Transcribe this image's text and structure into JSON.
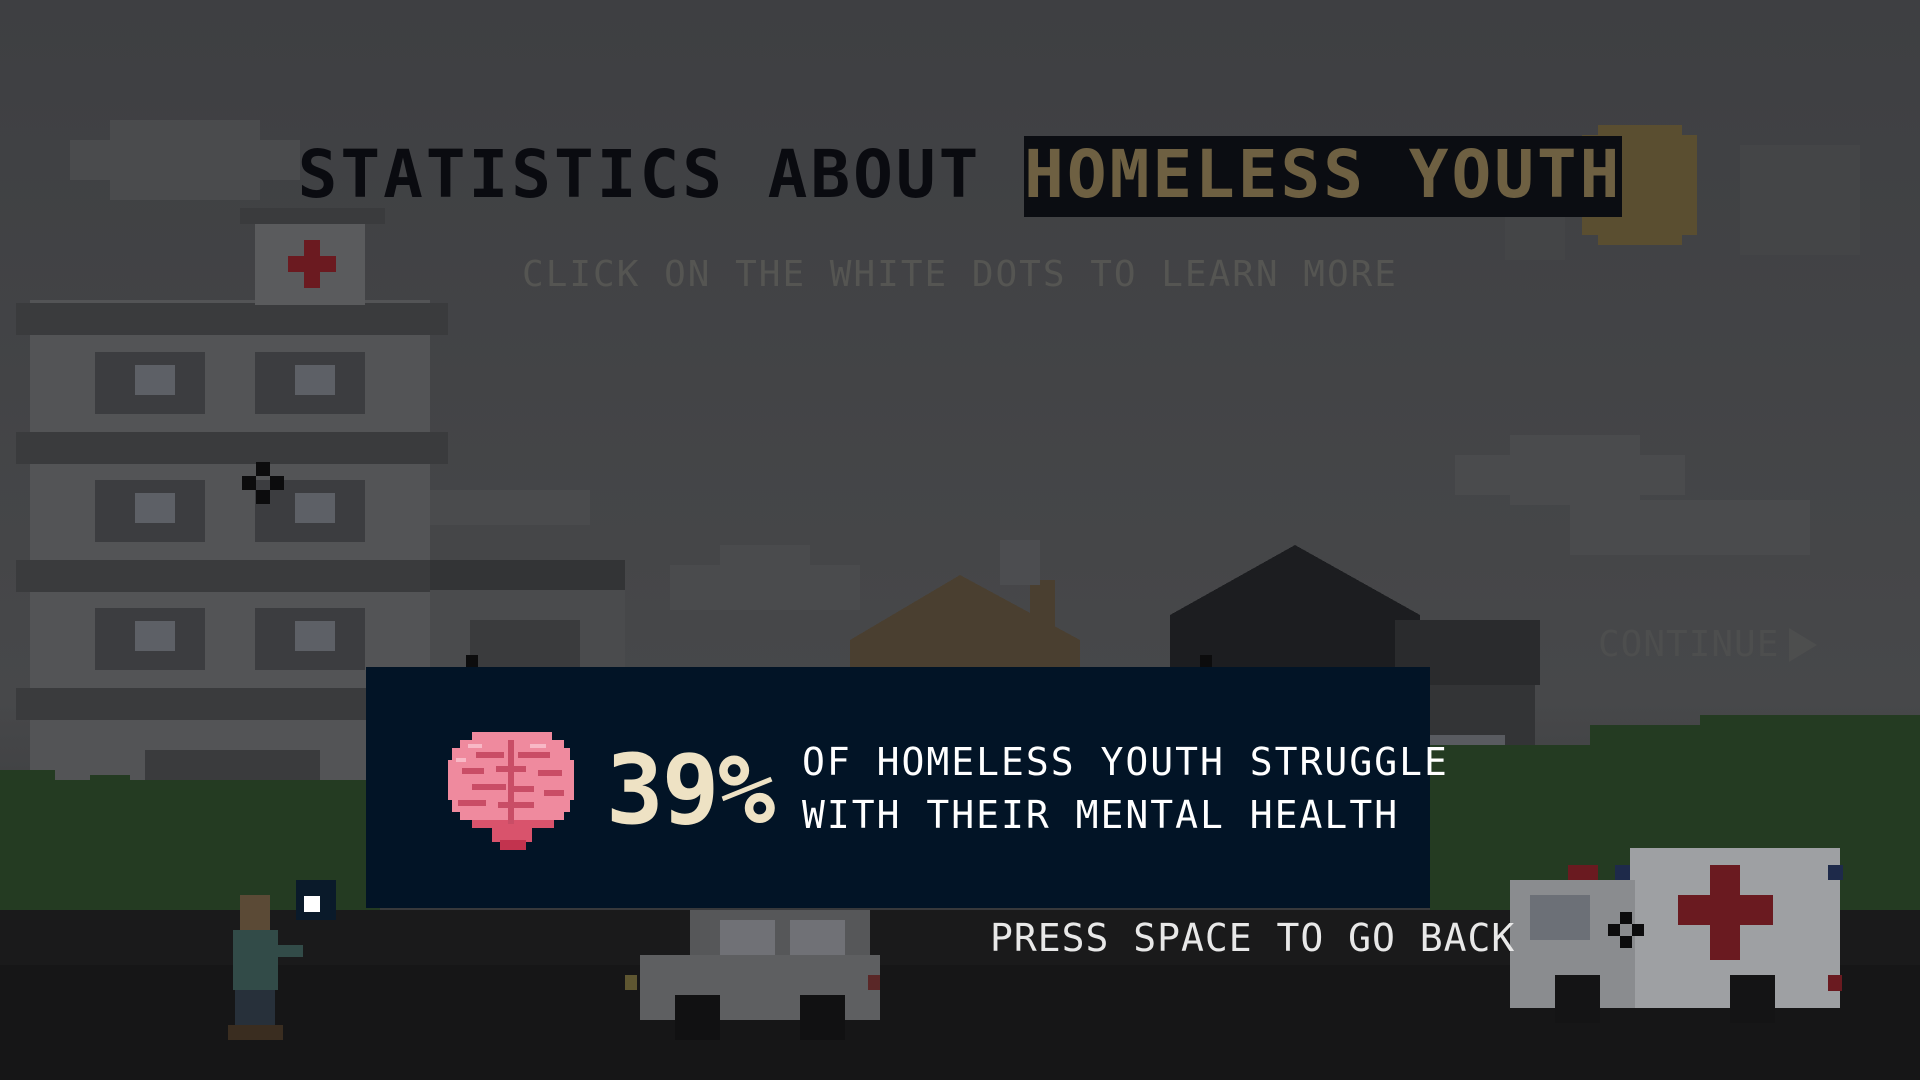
{
  "header": {
    "title_prefix": "STATISTICS ABOUT",
    "title_highlight": "HOMELESS YOUTH",
    "subtitle": "CLICK ON THE WHITE DOTS TO LEARN MORE"
  },
  "nav": {
    "continue_label": "CONTINUE"
  },
  "popup": {
    "stat_value": "39%",
    "stat_line1": "OF HOMELESS YOUTH STRUGGLE",
    "stat_line2": "WITH THEIR MENTAL HEALTH",
    "icon": "brain-icon"
  },
  "footer": {
    "back_hint": "PRESS SPACE TO GO BACK"
  },
  "colors": {
    "panel": "#021426",
    "stat_number": "#eee2c4",
    "highlight_text": "#6e6042",
    "brain": "#ef8a9e"
  }
}
